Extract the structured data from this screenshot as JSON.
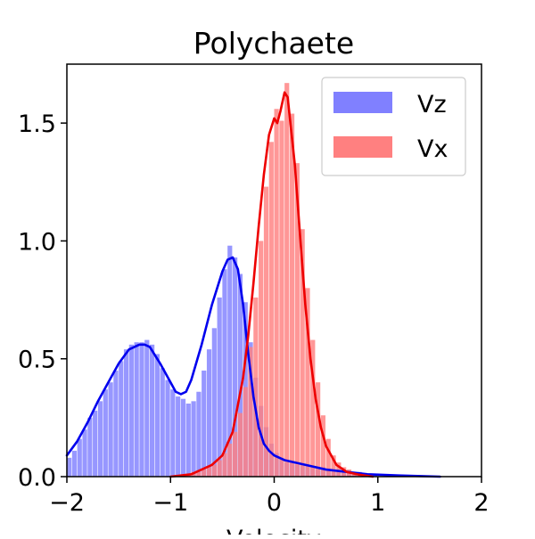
{
  "chart_data": {
    "type": "histogram-with-density",
    "title": "Polychaete",
    "xlabel": "Velocity",
    "ylabel": "",
    "xlim": [
      -2,
      2
    ],
    "ylim": [
      0,
      1.75
    ],
    "x_ticks": [
      -2,
      -1,
      0,
      1,
      2
    ],
    "x_tick_labels": [
      "−2",
      "−1",
      "0",
      "1",
      "2"
    ],
    "y_ticks": [
      0.0,
      0.5,
      1.0,
      1.5
    ],
    "y_tick_labels": [
      "0.0",
      "0.5",
      "1.0",
      "1.5"
    ],
    "grid": false,
    "legend_position": "top-right",
    "series": [
      {
        "name": "Vz",
        "bar_color": "#8080ff",
        "line_color": "#0000ee",
        "bin_width": 0.05,
        "bins": [
          [
            -2.0,
            0.08
          ],
          [
            -1.95,
            0.11
          ],
          [
            -1.9,
            0.16
          ],
          [
            -1.85,
            0.2
          ],
          [
            -1.8,
            0.25
          ],
          [
            -1.75,
            0.28
          ],
          [
            -1.7,
            0.32
          ],
          [
            -1.65,
            0.37
          ],
          [
            -1.6,
            0.4
          ],
          [
            -1.55,
            0.45
          ],
          [
            -1.5,
            0.49
          ],
          [
            -1.45,
            0.54
          ],
          [
            -1.4,
            0.56
          ],
          [
            -1.35,
            0.57
          ],
          [
            -1.3,
            0.57
          ],
          [
            -1.25,
            0.58
          ],
          [
            -1.2,
            0.56
          ],
          [
            -1.15,
            0.52
          ],
          [
            -1.1,
            0.46
          ],
          [
            -1.05,
            0.41
          ],
          [
            -1.0,
            0.37
          ],
          [
            -0.95,
            0.34
          ],
          [
            -0.9,
            0.33
          ],
          [
            -0.85,
            0.31
          ],
          [
            -0.8,
            0.32
          ],
          [
            -0.75,
            0.36
          ],
          [
            -0.7,
            0.45
          ],
          [
            -0.65,
            0.54
          ],
          [
            -0.6,
            0.63
          ],
          [
            -0.55,
            0.76
          ],
          [
            -0.5,
            0.88
          ],
          [
            -0.45,
            0.98
          ],
          [
            -0.4,
            0.93
          ],
          [
            -0.35,
            0.86
          ],
          [
            -0.3,
            0.74
          ],
          [
            -0.25,
            0.57
          ],
          [
            -0.2,
            0.42
          ],
          [
            -0.15,
            0.3
          ],
          [
            -0.1,
            0.21
          ],
          [
            -0.05,
            0.14
          ],
          [
            0.0,
            0.1
          ],
          [
            0.05,
            0.08
          ],
          [
            0.1,
            0.06
          ],
          [
            0.15,
            0.06
          ],
          [
            0.2,
            0.05
          ],
          [
            0.25,
            0.05
          ],
          [
            0.3,
            0.05
          ],
          [
            0.35,
            0.04
          ],
          [
            0.4,
            0.04
          ],
          [
            0.45,
            0.04
          ],
          [
            0.5,
            0.03
          ],
          [
            0.55,
            0.03
          ],
          [
            0.6,
            0.03
          ],
          [
            0.65,
            0.02
          ],
          [
            0.7,
            0.02
          ],
          [
            0.75,
            0.02
          ],
          [
            0.8,
            0.02
          ],
          [
            0.85,
            0.01
          ],
          [
            0.9,
            0.01
          ],
          [
            0.95,
            0.01
          ]
        ],
        "density": [
          [
            -2.0,
            0.09
          ],
          [
            -1.9,
            0.15
          ],
          [
            -1.8,
            0.23
          ],
          [
            -1.7,
            0.32
          ],
          [
            -1.6,
            0.4
          ],
          [
            -1.5,
            0.48
          ],
          [
            -1.4,
            0.54
          ],
          [
            -1.3,
            0.56
          ],
          [
            -1.25,
            0.56
          ],
          [
            -1.2,
            0.55
          ],
          [
            -1.1,
            0.48
          ],
          [
            -1.0,
            0.4
          ],
          [
            -0.95,
            0.36
          ],
          [
            -0.9,
            0.35
          ],
          [
            -0.85,
            0.36
          ],
          [
            -0.8,
            0.41
          ],
          [
            -0.7,
            0.56
          ],
          [
            -0.6,
            0.73
          ],
          [
            -0.5,
            0.87
          ],
          [
            -0.45,
            0.92
          ],
          [
            -0.4,
            0.93
          ],
          [
            -0.35,
            0.88
          ],
          [
            -0.3,
            0.73
          ],
          [
            -0.25,
            0.52
          ],
          [
            -0.2,
            0.34
          ],
          [
            -0.15,
            0.21
          ],
          [
            -0.1,
            0.14
          ],
          [
            -0.05,
            0.11
          ],
          [
            0.0,
            0.09
          ],
          [
            0.1,
            0.07
          ],
          [
            0.2,
            0.06
          ],
          [
            0.3,
            0.05
          ],
          [
            0.4,
            0.04
          ],
          [
            0.5,
            0.03
          ],
          [
            0.7,
            0.02
          ],
          [
            0.9,
            0.01
          ],
          [
            1.2,
            0.005
          ],
          [
            1.6,
            0.0
          ]
        ]
      },
      {
        "name": "Vx",
        "bar_color": "#ff8080",
        "line_color": "#ee0000",
        "bin_width": 0.05,
        "bins": [
          [
            -0.9,
            0.01
          ],
          [
            -0.85,
            0.01
          ],
          [
            -0.8,
            0.02
          ],
          [
            -0.75,
            0.02
          ],
          [
            -0.7,
            0.03
          ],
          [
            -0.65,
            0.04
          ],
          [
            -0.6,
            0.05
          ],
          [
            -0.55,
            0.07
          ],
          [
            -0.5,
            0.1
          ],
          [
            -0.45,
            0.14
          ],
          [
            -0.4,
            0.19
          ],
          [
            -0.35,
            0.27
          ],
          [
            -0.3,
            0.38
          ],
          [
            -0.25,
            0.55
          ],
          [
            -0.2,
            0.76
          ],
          [
            -0.15,
            1.0
          ],
          [
            -0.1,
            1.23
          ],
          [
            -0.05,
            1.42
          ],
          [
            0.0,
            1.56
          ],
          [
            0.05,
            1.51
          ],
          [
            0.1,
            1.67
          ],
          [
            0.15,
            1.54
          ],
          [
            0.2,
            1.33
          ],
          [
            0.25,
            1.05
          ],
          [
            0.3,
            0.8
          ],
          [
            0.35,
            0.58
          ],
          [
            0.4,
            0.4
          ],
          [
            0.45,
            0.26
          ],
          [
            0.5,
            0.16
          ],
          [
            0.55,
            0.09
          ],
          [
            0.6,
            0.06
          ],
          [
            0.65,
            0.04
          ],
          [
            0.7,
            0.03
          ],
          [
            0.75,
            0.02
          ],
          [
            0.8,
            0.01
          ]
        ],
        "density": [
          [
            -1.0,
            0.0
          ],
          [
            -0.8,
            0.01
          ],
          [
            -0.6,
            0.05
          ],
          [
            -0.5,
            0.09
          ],
          [
            -0.4,
            0.19
          ],
          [
            -0.3,
            0.42
          ],
          [
            -0.25,
            0.6
          ],
          [
            -0.2,
            0.82
          ],
          [
            -0.15,
            1.06
          ],
          [
            -0.1,
            1.28
          ],
          [
            -0.05,
            1.45
          ],
          [
            0.0,
            1.52
          ],
          [
            0.03,
            1.5
          ],
          [
            0.06,
            1.55
          ],
          [
            0.1,
            1.63
          ],
          [
            0.13,
            1.61
          ],
          [
            0.2,
            1.32
          ],
          [
            0.25,
            1.02
          ],
          [
            0.3,
            0.73
          ],
          [
            0.35,
            0.5
          ],
          [
            0.4,
            0.33
          ],
          [
            0.45,
            0.21
          ],
          [
            0.5,
            0.13
          ],
          [
            0.6,
            0.05
          ],
          [
            0.7,
            0.02
          ],
          [
            0.8,
            0.01
          ],
          [
            0.95,
            0.0
          ]
        ]
      }
    ]
  }
}
